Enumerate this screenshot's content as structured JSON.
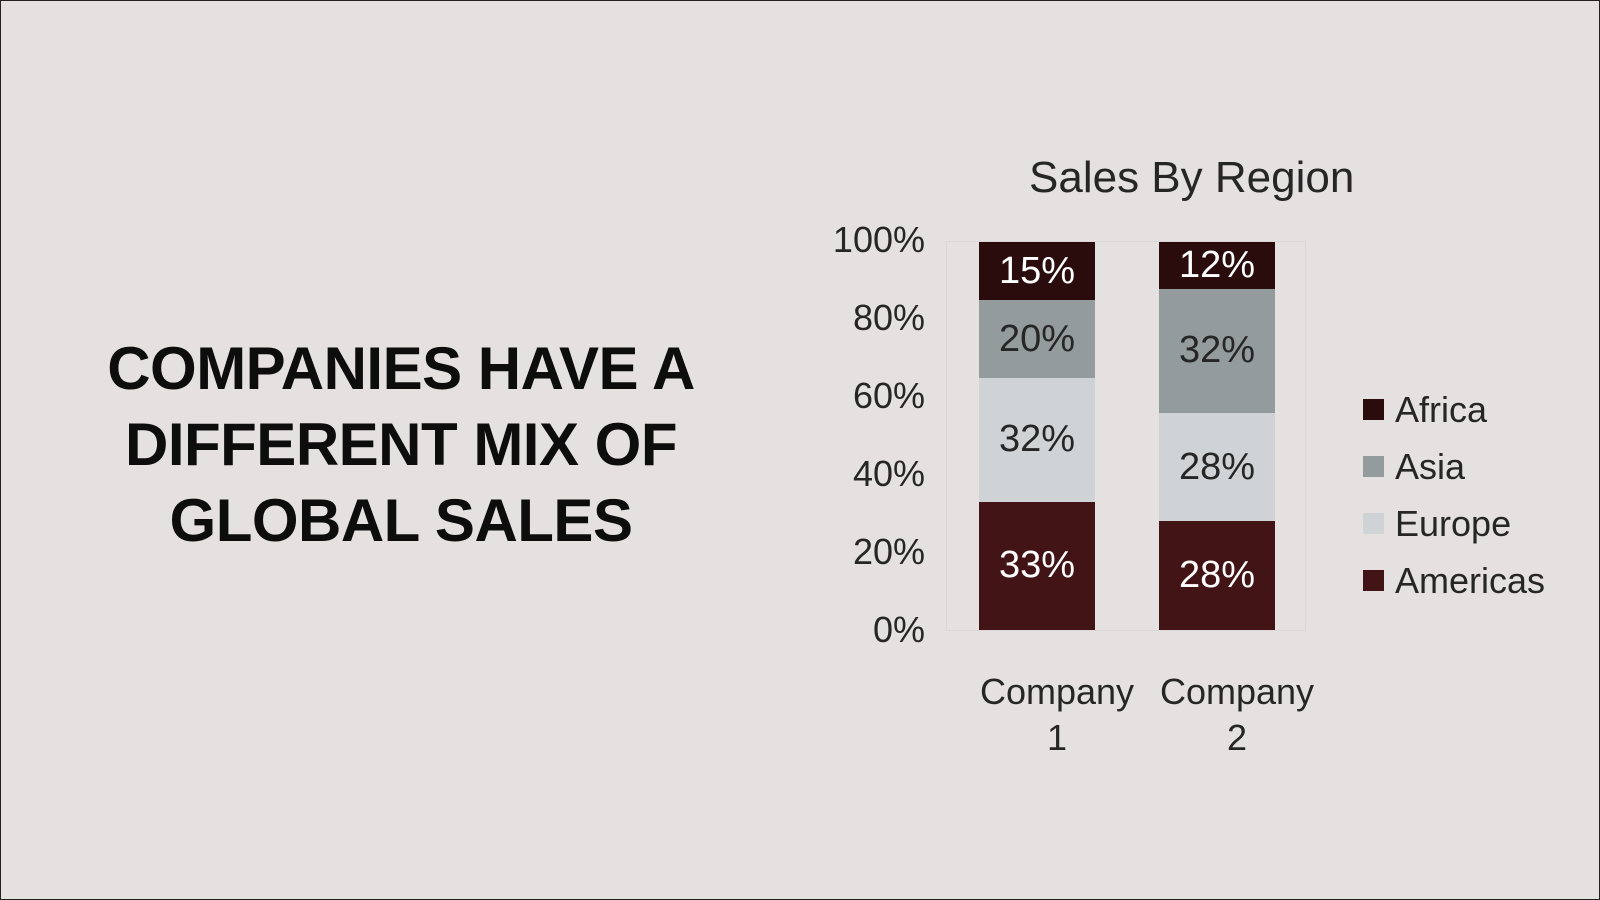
{
  "slide": {
    "title": "COMPANIES HAVE A DIFFERENT MIX OF GLOBAL SALES"
  },
  "chart_data": {
    "type": "bar",
    "stacked": "percent",
    "title": "Sales By Region",
    "xlabel": "",
    "ylabel": "",
    "categories": [
      "Company 1",
      "Company 2"
    ],
    "category_labels": [
      [
        "Company",
        "1"
      ],
      [
        "Company",
        "2"
      ]
    ],
    "yticks": [
      "100%",
      "80%",
      "60%",
      "40%",
      "20%",
      "0%"
    ],
    "ylim": [
      0,
      100
    ],
    "grid": false,
    "legend_position": "right",
    "series": [
      {
        "name": "Americas",
        "color": "#431416",
        "text_color": "#ffffff",
        "values": [
          33,
          28
        ],
        "labels": [
          "33%",
          "28%"
        ]
      },
      {
        "name": "Europe",
        "color": "#cfd3d5",
        "text_color": "#262626",
        "values": [
          32,
          28
        ],
        "labels": [
          "32%",
          "28%"
        ]
      },
      {
        "name": "Asia",
        "color": "#949b9d",
        "text_color": "#262626",
        "values": [
          20,
          32
        ],
        "labels": [
          "20%",
          "32%"
        ]
      },
      {
        "name": "Africa",
        "color": "#2b0c0d",
        "text_color": "#ffffff",
        "values": [
          15,
          12
        ],
        "labels": [
          "15%",
          "12%"
        ]
      }
    ],
    "legend": [
      {
        "name": "Africa",
        "color": "#2b0c0d"
      },
      {
        "name": "Asia",
        "color": "#949b9d"
      },
      {
        "name": "Europe",
        "color": "#cfd3d5"
      },
      {
        "name": "Americas",
        "color": "#431416"
      }
    ]
  }
}
